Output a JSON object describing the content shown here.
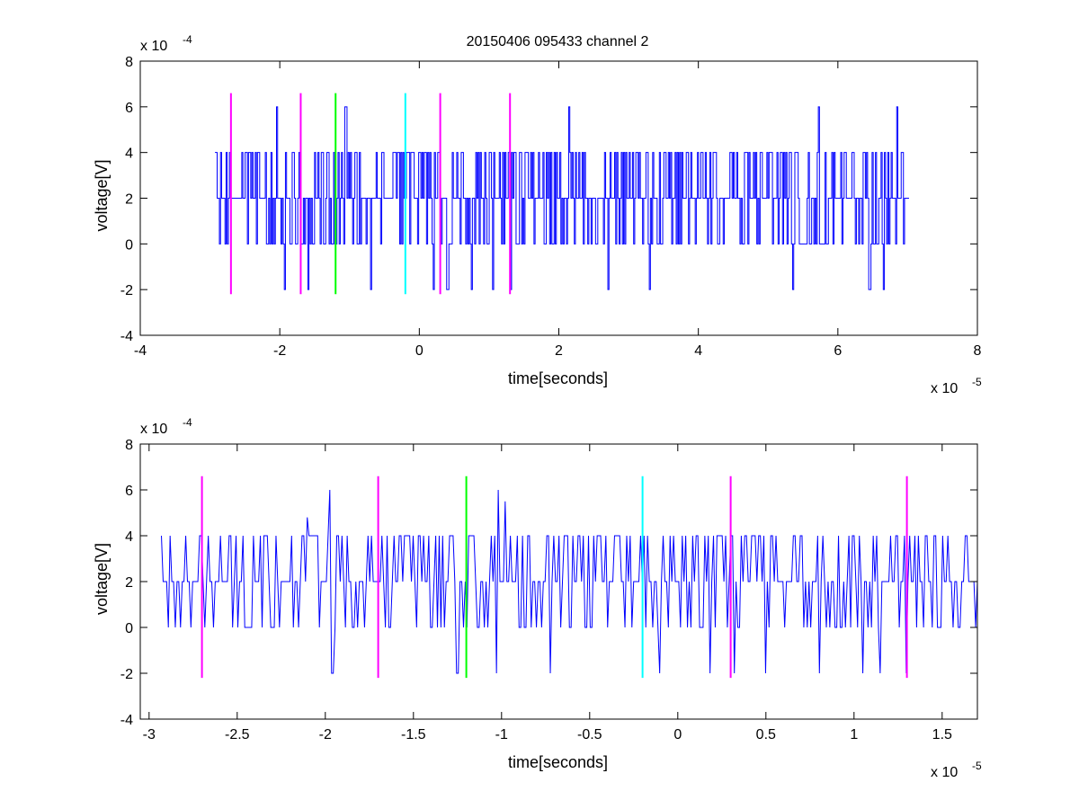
{
  "title": "20150406 095433 channel 2",
  "colors": {
    "signal": "#0000ff",
    "magenta": "#ff00ff",
    "green": "#00ff00",
    "cyan": "#00ffff",
    "axis": "#000000"
  },
  "chart_data": [
    {
      "type": "line",
      "title": "20150406 095433 channel 2",
      "xlabel": "time[seconds]",
      "ylabel": "voltage[V]",
      "x_multiplier": "x 10",
      "x_exponent": "-5",
      "y_multiplier": "x 10",
      "y_exponent": "-4",
      "xlim": [
        -4,
        8
      ],
      "ylim": [
        -4,
        8
      ],
      "x_ticks": [
        -4,
        -2,
        0,
        2,
        4,
        6,
        8
      ],
      "x_tick_labels": [
        "-4",
        "-2",
        "0",
        "2",
        "4",
        "6",
        "8"
      ],
      "y_ticks": [
        -4,
        -2,
        0,
        2,
        4,
        6,
        8
      ],
      "y_tick_labels": [
        "-4",
        "-2",
        "0",
        "2",
        "4",
        "6",
        "8"
      ],
      "grid": false,
      "legend": "none",
      "signal": {
        "x_start": -2.93,
        "x_end": 7.02,
        "levels": [
          -2,
          0,
          2,
          4,
          6
        ],
        "baseline": 2,
        "spikes_up": [
          [
            -2.05,
            6
          ],
          [
            -1.06,
            6
          ],
          [
            2.14,
            6
          ],
          [
            5.72,
            6
          ],
          [
            6.85,
            6
          ]
        ],
        "spikes_down": [
          [
            -1.94,
            -2
          ],
          [
            -1.6,
            -2
          ],
          [
            -0.7,
            -2
          ],
          [
            0.2,
            -2
          ],
          [
            0.4,
            -2
          ],
          [
            0.75,
            -2
          ],
          [
            1.05,
            -2
          ],
          [
            1.3,
            -2
          ],
          [
            2.7,
            -2
          ],
          [
            3.3,
            -2
          ],
          [
            5.35,
            -2
          ],
          [
            6.45,
            -2
          ],
          [
            6.65,
            -2
          ]
        ]
      },
      "markers": [
        {
          "x": -2.7,
          "color": "magenta"
        },
        {
          "x": -1.7,
          "color": "magenta"
        },
        {
          "x": -1.2,
          "color": "green"
        },
        {
          "x": -0.2,
          "color": "cyan"
        },
        {
          "x": 0.3,
          "color": "magenta"
        },
        {
          "x": 1.3,
          "color": "magenta"
        }
      ],
      "marker_range": [
        -2.2,
        6.6
      ]
    },
    {
      "type": "line",
      "xlabel": "time[seconds]",
      "ylabel": "voltage[V]",
      "x_multiplier": "x 10",
      "x_exponent": "-5",
      "y_multiplier": "x 10",
      "y_exponent": "-4",
      "xlim": [
        -3.05,
        1.7
      ],
      "ylim": [
        -4,
        8
      ],
      "x_ticks": [
        -3,
        -2.5,
        -2,
        -1.5,
        -1,
        -0.5,
        0,
        0.5,
        1,
        1.5
      ],
      "x_tick_labels": [
        "-3",
        "-2.5",
        "-2",
        "-1.5",
        "-1",
        "-0.5",
        "0",
        "0.5",
        "1",
        "1.5"
      ],
      "y_ticks": [
        -4,
        -2,
        0,
        2,
        4,
        6,
        8
      ],
      "y_tick_labels": [
        "-4",
        "-2",
        "0",
        "2",
        "4",
        "6",
        "8"
      ],
      "grid": false,
      "legend": "none",
      "signal": {
        "x_start": -2.93,
        "x_end": 1.7,
        "levels": [
          -2,
          0,
          2,
          4,
          6
        ],
        "baseline": 2,
        "spikes_up": [
          [
            -2.1,
            4.8
          ],
          [
            -1.97,
            6
          ],
          [
            -1.02,
            6
          ],
          [
            -0.98,
            5.5
          ]
        ],
        "spikes_down": [
          [
            -1.96,
            -2
          ],
          [
            -1.25,
            -2
          ],
          [
            -1.03,
            -2
          ],
          [
            -0.72,
            -2
          ],
          [
            -0.1,
            -2
          ],
          [
            0.18,
            -2
          ],
          [
            0.32,
            -2
          ],
          [
            0.5,
            -2
          ],
          [
            0.8,
            -2
          ],
          [
            1.05,
            -2
          ],
          [
            1.15,
            -2
          ],
          [
            1.3,
            -2
          ]
        ]
      },
      "markers": [
        {
          "x": -2.7,
          "color": "magenta"
        },
        {
          "x": -1.7,
          "color": "magenta"
        },
        {
          "x": -1.2,
          "color": "green"
        },
        {
          "x": -0.2,
          "color": "cyan"
        },
        {
          "x": 0.3,
          "color": "magenta"
        },
        {
          "x": 1.3,
          "color": "magenta"
        }
      ],
      "marker_range": [
        -2.2,
        6.6
      ]
    }
  ]
}
